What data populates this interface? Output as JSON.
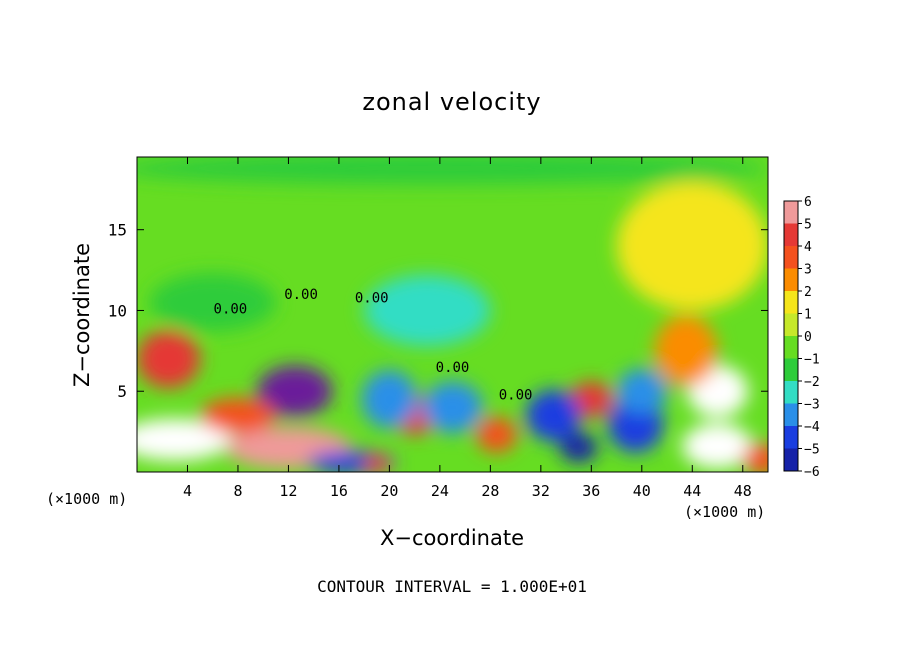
{
  "chart_data": {
    "type": "heatmap",
    "title": "zonal velocity",
    "xlabel": "X−coordinate",
    "ylabel": "Z−coordinate",
    "x_unit_label": "(×1000 m)",
    "xlim": [
      0,
      50
    ],
    "ylim": [
      0,
      19.5
    ],
    "x_ticks": [
      4,
      8,
      12,
      16,
      20,
      24,
      28,
      32,
      36,
      40,
      44,
      48
    ],
    "y_ticks": [
      5,
      10,
      15
    ],
    "colorbar": {
      "levels": [
        6,
        5,
        4,
        3,
        2,
        1,
        0,
        -1,
        -2,
        -3,
        -4,
        -5,
        -6
      ],
      "colors": [
        "#ef9a9a",
        "#e53935",
        "#f4511e",
        "#fb8c00",
        "#f5e51b",
        "#c6e82a",
        "#66dd22",
        "#2ecc3a",
        "#33ddc4",
        "#2a8fe8",
        "#1a3ee0",
        "#1622a8",
        "#6a1b9a"
      ]
    },
    "contour_labels": [
      {
        "text": "0.00",
        "x": 7.4,
        "y": 9.8
      },
      {
        "text": "0.00",
        "x": 13.0,
        "y": 10.7
      },
      {
        "text": "0.00",
        "x": 18.6,
        "y": 10.5
      },
      {
        "text": "0.00",
        "x": 25.0,
        "y": 6.2
      },
      {
        "text": "0.00",
        "x": 30.0,
        "y": 4.5
      }
    ],
    "fields": [
      {
        "x": 2.5,
        "y": 7.0,
        "rx": 2.5,
        "ry": 1.8,
        "v": 5.2
      },
      {
        "x": 12.5,
        "y": 5.0,
        "rx": 3.0,
        "ry": 1.6,
        "v": -5.6
      },
      {
        "x": 3.0,
        "y": 2.0,
        "rx": 4.5,
        "ry": 1.3,
        "v": -5.8
      },
      {
        "x": 12.0,
        "y": 1.5,
        "rx": 5.0,
        "ry": 1.3,
        "v": 5.6
      },
      {
        "x": 22.0,
        "y": 3.5,
        "rx": 1.7,
        "ry": 1.2,
        "v": 4.6
      },
      {
        "x": 28.5,
        "y": 2.3,
        "rx": 1.6,
        "ry": 1.1,
        "v": 4.2
      },
      {
        "x": 36.0,
        "y": 4.5,
        "rx": 1.7,
        "ry": 1.1,
        "v": 4.6
      },
      {
        "x": 46.0,
        "y": 5.0,
        "rx": 2.4,
        "ry": 1.6,
        "v": -6.0
      },
      {
        "x": 46.0,
        "y": 1.6,
        "rx": 2.8,
        "ry": 1.4,
        "v": -6.0
      },
      {
        "x": 43.5,
        "y": 7.5,
        "rx": 2.5,
        "ry": 2.2,
        "v": 3.2
      },
      {
        "x": 44.0,
        "y": 14.0,
        "rx": 6.0,
        "ry": 4.0,
        "v": 1.6
      },
      {
        "x": 20.0,
        "y": 4.5,
        "rx": 2.2,
        "ry": 1.8,
        "v": -3.4
      },
      {
        "x": 25.0,
        "y": 4.0,
        "rx": 2.4,
        "ry": 1.6,
        "v": -2.6
      },
      {
        "x": 33.0,
        "y": 3.5,
        "rx": 2.2,
        "ry": 1.6,
        "v": -3.6
      },
      {
        "x": 39.5,
        "y": 3.0,
        "rx": 2.2,
        "ry": 1.8,
        "v": -4.2
      },
      {
        "x": 40.0,
        "y": 5.0,
        "rx": 2.0,
        "ry": 1.4,
        "v": -2.6
      },
      {
        "x": 8.0,
        "y": 3.5,
        "rx": 3.0,
        "ry": 1.1,
        "v": 4.2
      },
      {
        "x": 23.0,
        "y": 10.0,
        "rx": 5.0,
        "ry": 2.2,
        "v": -1.6
      },
      {
        "x": 6.0,
        "y": 10.5,
        "rx": 5.0,
        "ry": 1.8,
        "v": -1.2
      },
      {
        "x": 24.0,
        "y": 18.8,
        "rx": 26.0,
        "ry": 1.0,
        "v": -1.4
      },
      {
        "x": 17.0,
        "y": 0.6,
        "rx": 3.5,
        "ry": 0.7,
        "v": -4.4
      },
      {
        "x": 49.5,
        "y": 0.8,
        "rx": 1.5,
        "ry": 1.0,
        "v": 4.0
      },
      {
        "x": 19.0,
        "y": 0.5,
        "rx": 1.0,
        "ry": 0.6,
        "v": 4.5
      },
      {
        "x": 35.0,
        "y": 1.5,
        "rx": 1.5,
        "ry": 0.9,
        "v": -4.6
      }
    ],
    "background_value": 0.4,
    "grid": false,
    "legend": "right"
  },
  "footer": "CONTOUR INTERVAL = 1.000E+01"
}
